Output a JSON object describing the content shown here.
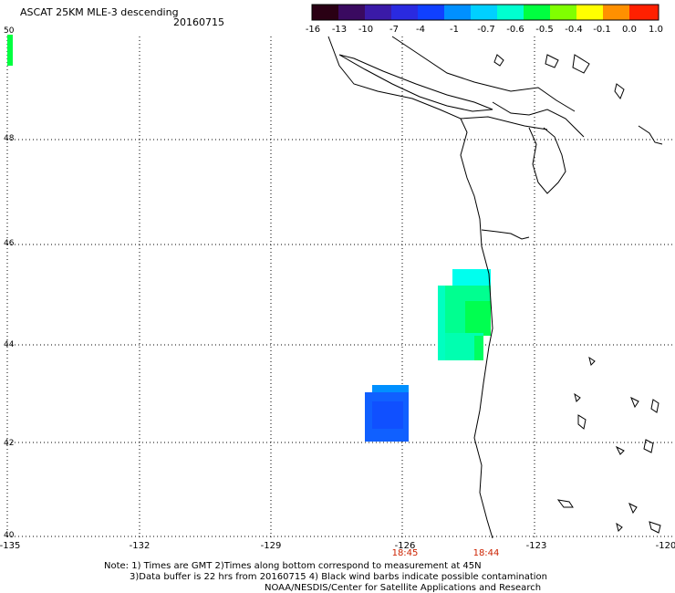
{
  "header": {
    "title": "ASCAT 25KM MLE-3 descending",
    "date": "20160715"
  },
  "colorbar": {
    "labels": [
      "-16",
      "-13",
      "-10",
      "-7",
      "-4",
      "-1",
      "-0.7",
      "-0.6",
      "-0.5",
      "-0.4",
      "-0.1",
      "0.0",
      "1.0"
    ],
    "colors": [
      "#2a0014",
      "#3a0a60",
      "#3a1aa8",
      "#2a2ae0",
      "#1040ff",
      "#0090ff",
      "#00d0ff",
      "#00ffd0",
      "#00ff40",
      "#80ff00",
      "#ffff00",
      "#ff9000",
      "#ff2000"
    ]
  },
  "map": {
    "lon_labels": [
      "-135",
      "-132",
      "-129",
      "-126",
      "-123",
      "-120"
    ],
    "lat_labels": [
      "50",
      "48",
      "46",
      "44",
      "42",
      "40"
    ],
    "time_labels": [
      "18:45",
      "18:44"
    ],
    "time_label_color": "#cc2200",
    "land_outline_color": "#000000",
    "grid_color": "#000000"
  },
  "notes": {
    "line1": "Note: 1) Times are GMT 2)Times along bottom correspond to measurement at 45N",
    "line2": "3)Data buffer is 22 hrs from 20160715 4) Black wind barbs indicate possible contamination",
    "line3": "NOAA/NESDIS/Center for Satellite Applications and Research"
  }
}
